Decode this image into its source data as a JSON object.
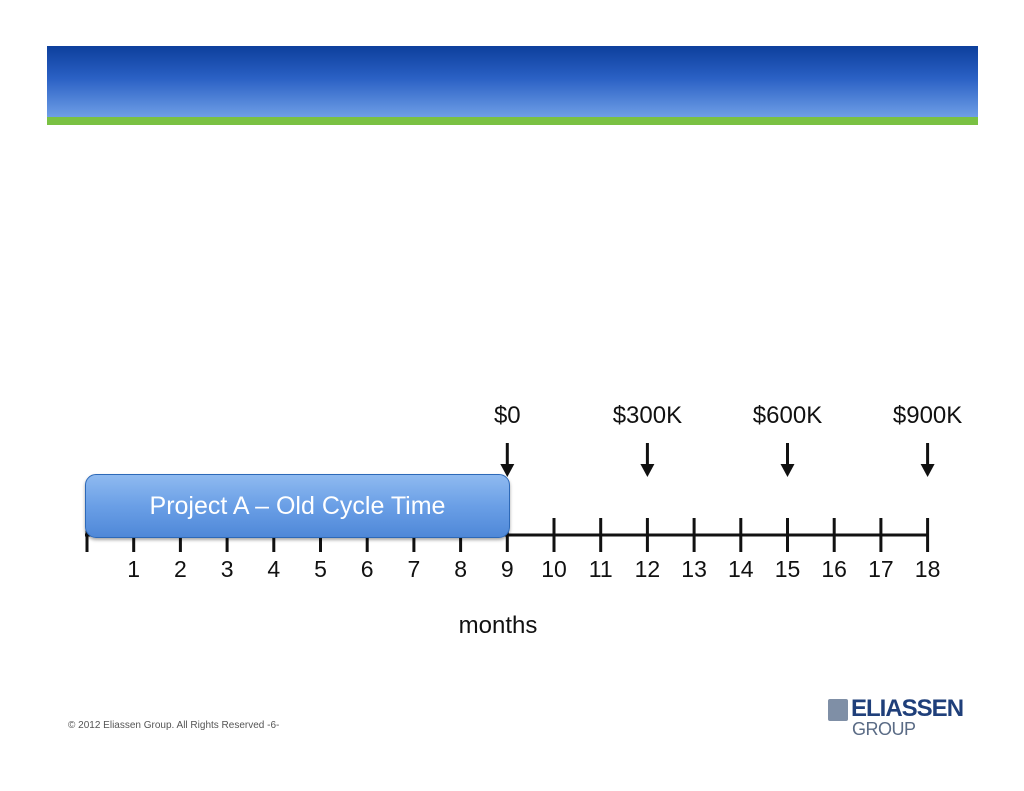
{
  "diagram": {
    "months": [
      "1",
      "2",
      "3",
      "4",
      "5",
      "6",
      "7",
      "8",
      "9",
      "10",
      "11",
      "12",
      "13",
      "14",
      "15",
      "16",
      "17",
      "18"
    ],
    "axis_label": "months",
    "milestones": [
      {
        "month": 9,
        "label": "$0"
      },
      {
        "month": 12,
        "label": "$300K"
      },
      {
        "month": 15,
        "label": "$600K"
      },
      {
        "month": 18,
        "label": "$900K"
      }
    ],
    "project_bar": {
      "label": "Project A – Old Cycle Time",
      "start_month": 0,
      "end_month": 9,
      "color": "#6a9fe6"
    }
  },
  "footer": {
    "copyright": "© 2012 Eliassen Group. All Rights Reserved -6-"
  },
  "logo": {
    "line1": "ELIASSEN",
    "line2": "GROUP"
  },
  "colors": {
    "header_blue": "#1f4fae",
    "accent_green": "#7ac143"
  }
}
